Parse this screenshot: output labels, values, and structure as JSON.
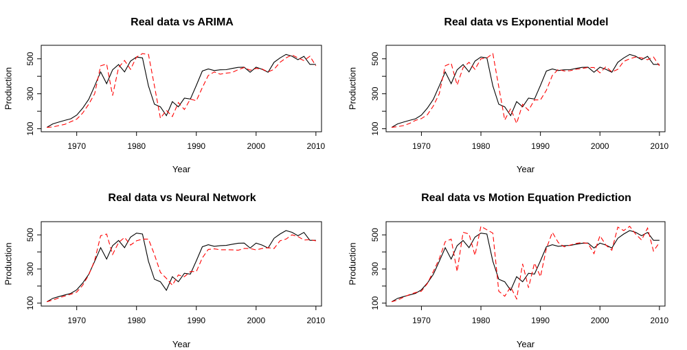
{
  "chart_data": [
    {
      "type": "line",
      "title": "Real data vs ARIMA",
      "xlabel": "Year",
      "ylabel": "Production",
      "xlim": [
        1965,
        2010
      ],
      "ylim": [
        100,
        560
      ],
      "xticks": [
        1970,
        1980,
        1990,
        2000,
        2010
      ],
      "yticks": [
        100,
        300,
        500
      ],
      "series": [
        {
          "color": "#000000",
          "style": "solid",
          "x": [
            1965,
            1966,
            1967,
            1968,
            1969,
            1970,
            1971,
            1972,
            1973,
            1974,
            1975,
            1976,
            1977,
            1978,
            1979,
            1980,
            1981,
            1982,
            1983,
            1984,
            1985,
            1986,
            1987,
            1988,
            1989,
            1990,
            1991,
            1992,
            1993,
            1994,
            1995,
            1996,
            1997,
            1998,
            1999,
            2000,
            2001,
            2002,
            2003,
            2004,
            2005,
            2006,
            2007,
            2008,
            2009,
            2010
          ],
          "y": [
            108,
            128,
            138,
            148,
            157,
            178,
            218,
            268,
            345,
            425,
            358,
            437,
            467,
            425,
            487,
            510,
            505,
            345,
            240,
            225,
            175,
            255,
            225,
            275,
            270,
            348,
            430,
            442,
            433,
            437,
            438,
            445,
            451,
            452,
            423,
            452,
            440,
            423,
            480,
            505,
            525,
            515,
            495,
            514,
            468,
            468
          ]
        },
        {
          "color": "#ff0000",
          "style": "dashed",
          "x": [
            1965,
            1966,
            1967,
            1968,
            1969,
            1970,
            1971,
            1972,
            1973,
            1974,
            1975,
            1976,
            1977,
            1978,
            1979,
            1980,
            1981,
            1982,
            1983,
            1984,
            1985,
            1986,
            1987,
            1988,
            1989,
            1990,
            1991,
            1992,
            1993,
            1994,
            1995,
            1996,
            1997,
            1998,
            1999,
            2000,
            2001,
            2002,
            2003,
            2004,
            2005,
            2006,
            2007,
            2008,
            2009,
            2010
          ],
          "y": [
            108,
            110,
            118,
            125,
            140,
            155,
            190,
            240,
            300,
            460,
            470,
            290,
            450,
            490,
            440,
            510,
            530,
            525,
            345,
            160,
            205,
            170,
            250,
            210,
            270,
            260,
            335,
            405,
            425,
            412,
            418,
            422,
            438,
            450,
            435,
            445,
            442,
            425,
            440,
            480,
            505,
            522,
            505,
            490,
            515,
            460
          ]
        }
      ]
    },
    {
      "type": "line",
      "title": "Real data vs Exponential Model",
      "xlabel": "Year",
      "ylabel": "Production",
      "xlim": [
        1965,
        2010
      ],
      "ylim": [
        100,
        560
      ],
      "xticks": [
        1970,
        1980,
        1990,
        2000,
        2010
      ],
      "yticks": [
        100,
        300,
        500
      ],
      "series": [
        {
          "color": "#000000",
          "style": "solid",
          "x": [
            1965,
            1966,
            1967,
            1968,
            1969,
            1970,
            1971,
            1972,
            1973,
            1974,
            1975,
            1976,
            1977,
            1978,
            1979,
            1980,
            1981,
            1982,
            1983,
            1984,
            1985,
            1986,
            1987,
            1988,
            1989,
            1990,
            1991,
            1992,
            1993,
            1994,
            1995,
            1996,
            1997,
            1998,
            1999,
            2000,
            2001,
            2002,
            2003,
            2004,
            2005,
            2006,
            2007,
            2008,
            2009,
            2010
          ],
          "y": [
            108,
            128,
            138,
            148,
            157,
            178,
            218,
            268,
            345,
            425,
            358,
            437,
            467,
            425,
            487,
            510,
            505,
            345,
            240,
            225,
            175,
            255,
            225,
            275,
            270,
            348,
            430,
            442,
            433,
            437,
            438,
            445,
            451,
            452,
            423,
            452,
            440,
            423,
            480,
            505,
            525,
            515,
            495,
            514,
            468,
            468
          ]
        },
        {
          "color": "#ff0000",
          "style": "dashed",
          "x": [
            1965,
            1966,
            1967,
            1968,
            1969,
            1970,
            1971,
            1972,
            1973,
            1974,
            1975,
            1976,
            1977,
            1978,
            1979,
            1980,
            1981,
            1982,
            1983,
            1984,
            1985,
            1986,
            1987,
            1988,
            1989,
            1990,
            1991,
            1992,
            1993,
            1994,
            1995,
            1996,
            1997,
            1998,
            1999,
            2000,
            2001,
            2002,
            2003,
            2004,
            2005,
            2006,
            2007,
            2008,
            2009,
            2010
          ],
          "y": [
            108,
            112,
            118,
            130,
            148,
            158,
            180,
            230,
            300,
            460,
            475,
            350,
            450,
            480,
            440,
            500,
            505,
            530,
            340,
            150,
            215,
            130,
            240,
            205,
            265,
            265,
            320,
            405,
            440,
            430,
            432,
            440,
            445,
            450,
            450,
            420,
            455,
            425,
            440,
            485,
            500,
            510,
            505,
            495,
            510,
            460
          ]
        }
      ]
    },
    {
      "type": "line",
      "title": "Real data vs Neural Network",
      "xlabel": "Year",
      "ylabel": "Production",
      "xlim": [
        1965,
        2010
      ],
      "ylim": [
        100,
        560
      ],
      "xticks": [
        1970,
        1980,
        1990,
        2000,
        2010
      ],
      "yticks": [
        100,
        300,
        500
      ],
      "series": [
        {
          "color": "#000000",
          "style": "solid",
          "x": [
            1965,
            1966,
            1967,
            1968,
            1969,
            1970,
            1971,
            1972,
            1973,
            1974,
            1975,
            1976,
            1977,
            1978,
            1979,
            1980,
            1981,
            1982,
            1983,
            1984,
            1985,
            1986,
            1987,
            1988,
            1989,
            1990,
            1991,
            1992,
            1993,
            1994,
            1995,
            1996,
            1997,
            1998,
            1999,
            2000,
            2001,
            2002,
            2003,
            2004,
            2005,
            2006,
            2007,
            2008,
            2009,
            2010
          ],
          "y": [
            108,
            128,
            138,
            148,
            157,
            178,
            218,
            268,
            345,
            425,
            358,
            437,
            467,
            425,
            487,
            510,
            505,
            345,
            240,
            225,
            175,
            255,
            225,
            275,
            270,
            348,
            430,
            442,
            433,
            437,
            438,
            445,
            451,
            452,
            423,
            452,
            440,
            423,
            480,
            505,
            525,
            515,
            495,
            514,
            468,
            468
          ]
        },
        {
          "color": "#ff0000",
          "style": "dashed",
          "x": [
            1965,
            1966,
            1967,
            1968,
            1969,
            1970,
            1971,
            1972,
            1973,
            1974,
            1975,
            1976,
            1977,
            1978,
            1979,
            1980,
            1981,
            1982,
            1983,
            1984,
            1985,
            1986,
            1987,
            1988,
            1989,
            1990,
            1991,
            1992,
            1993,
            1994,
            1995,
            1996,
            1997,
            1998,
            1999,
            2000,
            2001,
            2002,
            2003,
            2004,
            2005,
            2006,
            2007,
            2008,
            2009,
            2010
          ],
          "y": [
            108,
            118,
            130,
            142,
            152,
            165,
            205,
            265,
            350,
            495,
            505,
            385,
            455,
            485,
            440,
            465,
            475,
            475,
            385,
            280,
            245,
            205,
            265,
            255,
            285,
            285,
            365,
            415,
            418,
            413,
            413,
            412,
            410,
            420,
            420,
            412,
            420,
            425,
            420,
            465,
            475,
            500,
            490,
            470,
            472,
            465
          ]
        }
      ]
    },
    {
      "type": "line",
      "title": "Real data vs Motion Equation Prediction",
      "xlabel": "Year",
      "ylabel": "Production",
      "xlim": [
        1965,
        2010
      ],
      "ylim": [
        100,
        560
      ],
      "xticks": [
        1970,
        1980,
        1990,
        2000,
        2010
      ],
      "yticks": [
        100,
        300,
        500
      ],
      "series": [
        {
          "color": "#000000",
          "style": "solid",
          "x": [
            1965,
            1966,
            1967,
            1968,
            1969,
            1970,
            1971,
            1972,
            1973,
            1974,
            1975,
            1976,
            1977,
            1978,
            1979,
            1980,
            1981,
            1982,
            1983,
            1984,
            1985,
            1986,
            1987,
            1988,
            1989,
            1990,
            1991,
            1992,
            1993,
            1994,
            1995,
            1996,
            1997,
            1998,
            1999,
            2000,
            2001,
            2002,
            2003,
            2004,
            2005,
            2006,
            2007,
            2008,
            2009,
            2010
          ],
          "y": [
            108,
            128,
            138,
            148,
            157,
            178,
            218,
            268,
            345,
            425,
            358,
            437,
            467,
            425,
            487,
            510,
            505,
            345,
            240,
            225,
            175,
            255,
            225,
            275,
            270,
            348,
            430,
            442,
            433,
            437,
            438,
            445,
            451,
            452,
            423,
            452,
            440,
            423,
            480,
            505,
            525,
            515,
            495,
            514,
            468,
            468
          ]
        },
        {
          "color": "#ff0000",
          "style": "dashed",
          "x": [
            1965,
            1966,
            1967,
            1968,
            1969,
            1970,
            1971,
            1972,
            1973,
            1974,
            1975,
            1976,
            1977,
            1978,
            1979,
            1980,
            1981,
            1982,
            1983,
            1984,
            1985,
            1986,
            1987,
            1988,
            1989,
            1990,
            1991,
            1992,
            1993,
            1994,
            1995,
            1996,
            1997,
            1998,
            1999,
            2000,
            2001,
            2002,
            2003,
            2004,
            2005,
            2006,
            2007,
            2008,
            2009,
            2010
          ],
          "y": [
            108,
            118,
            135,
            150,
            162,
            170,
            215,
            285,
            360,
            460,
            475,
            285,
            515,
            505,
            380,
            550,
            530,
            510,
            170,
            140,
            195,
            125,
            330,
            190,
            335,
            255,
            420,
            515,
            455,
            430,
            440,
            450,
            455,
            450,
            390,
            495,
            440,
            410,
            545,
            525,
            550,
            505,
            470,
            540,
            405,
            455
          ]
        }
      ]
    }
  ]
}
